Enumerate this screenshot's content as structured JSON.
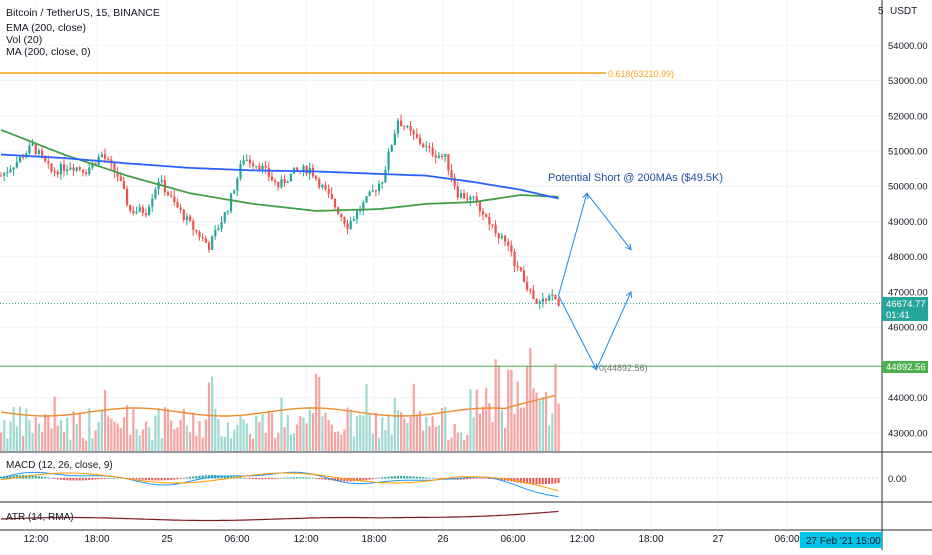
{
  "header": {
    "symbol": "Bitcoin / TetherUS, 15, BINANCE",
    "indicators": [
      "EMA (200, close)",
      "Vol (20)",
      "MA (200, close, 0)"
    ]
  },
  "currency_label": "USDT",
  "annotation": "Potential Short @ 200MAs ($49.5K)",
  "fib_top_label": "0.618(53210.99)",
  "fib_bottom_label": "0(44892.56)",
  "price_badge": {
    "price": "46674.77",
    "countdown": "01:41"
  },
  "fib_badge": "44892.56",
  "macd_label": "MACD (12, 26, close, 9)",
  "macd_zero_label": "0.00",
  "atr_label": "ATR (14, RMA)",
  "x_ticks": [
    "12:00",
    "18:00",
    "25",
    "06:00",
    "12:00",
    "18:00",
    "26",
    "06:00",
    "12:00",
    "18:00",
    "27",
    "06:00"
  ],
  "time_badge": "27 Feb '21   15:00",
  "colors": {
    "up": "#26a69a",
    "down": "#ef5350",
    "ema": "#2962ff",
    "ma": "#43a047",
    "fib_top": "#f5a623",
    "fib_bottom": "#4caf50",
    "arrow": "#1e88e5",
    "current_price": "#26a69a"
  },
  "chart_data": {
    "type": "candlestick",
    "price_axis": {
      "ticks": [
        54000,
        53000,
        52000,
        51000,
        50000,
        49000,
        48000,
        47000,
        46000,
        44000,
        43000
      ],
      "tick_labels": [
        "54000.00",
        "53000.00",
        "52000.00",
        "51000.00",
        "50000.00",
        "49000.00",
        "48000.00",
        "47000.00",
        "46000.00",
        "44000.00",
        "43000.00"
      ],
      "range": [
        42600,
        55200
      ]
    },
    "x_axis": {
      "ticks": [
        "12:00",
        "18:00",
        "25",
        "06:00",
        "12:00",
        "18:00",
        "26",
        "06:00",
        "12:00",
        "18:00",
        "27",
        "06:00"
      ]
    },
    "horizontal_levels": [
      {
        "label": "0.618(53210.99)",
        "value": 53210.99
      },
      {
        "label": "0(44892.56)",
        "value": 44892.56
      }
    ],
    "current_price": 46674.77,
    "annotation": {
      "text": "Potential Short @ 200MAs ($49.5K)",
      "target": 49500
    },
    "close_anchors": [
      [
        0,
        50300
      ],
      [
        5,
        50700
      ],
      [
        10,
        51150
      ],
      [
        16,
        50400
      ],
      [
        22,
        50600
      ],
      [
        27,
        50450
      ],
      [
        32,
        50900
      ],
      [
        37,
        50300
      ],
      [
        41,
        49300
      ],
      [
        46,
        49300
      ],
      [
        50,
        50200
      ],
      [
        55,
        49500
      ],
      [
        61,
        48800
      ],
      [
        66,
        48300
      ],
      [
        72,
        49400
      ],
      [
        77,
        50800
      ],
      [
        82,
        50600
      ],
      [
        88,
        50000
      ],
      [
        93,
        50400
      ],
      [
        98,
        50500
      ],
      [
        104,
        49700
      ],
      [
        110,
        48900
      ],
      [
        116,
        49600
      ],
      [
        121,
        50200
      ],
      [
        126,
        51900
      ],
      [
        130,
        51500
      ],
      [
        136,
        51000
      ],
      [
        141,
        50800
      ],
      [
        145,
        49800
      ],
      [
        150,
        49600
      ],
      [
        155,
        49000
      ],
      [
        160,
        48400
      ],
      [
        165,
        47500
      ],
      [
        170,
        46600
      ],
      [
        174,
        46900
      ],
      [
        177,
        46700
      ]
    ],
    "ema_200": [
      [
        0,
        50900
      ],
      [
        20,
        50800
      ],
      [
        40,
        50650
      ],
      [
        60,
        50520
      ],
      [
        80,
        50450
      ],
      [
        100,
        50420
      ],
      [
        120,
        50350
      ],
      [
        135,
        50300
      ],
      [
        150,
        50120
      ],
      [
        165,
        49900
      ],
      [
        177,
        49650
      ]
    ],
    "ma_200": [
      [
        0,
        51600
      ],
      [
        20,
        50900
      ],
      [
        40,
        50300
      ],
      [
        60,
        49800
      ],
      [
        80,
        49500
      ],
      [
        100,
        49300
      ],
      [
        120,
        49350
      ],
      [
        135,
        49500
      ],
      [
        150,
        49550
      ],
      [
        165,
        49750
      ],
      [
        177,
        49700
      ]
    ],
    "projection_arrows": [
      {
        "from": [
          177,
          46900
        ],
        "via": [
          186,
          49800
        ],
        "to": [
          200,
          48200
        ]
      },
      {
        "from": [
          177,
          46900
        ],
        "via": [
          189,
          44800
        ],
        "to": [
          200,
          47000
        ]
      }
    ]
  }
}
